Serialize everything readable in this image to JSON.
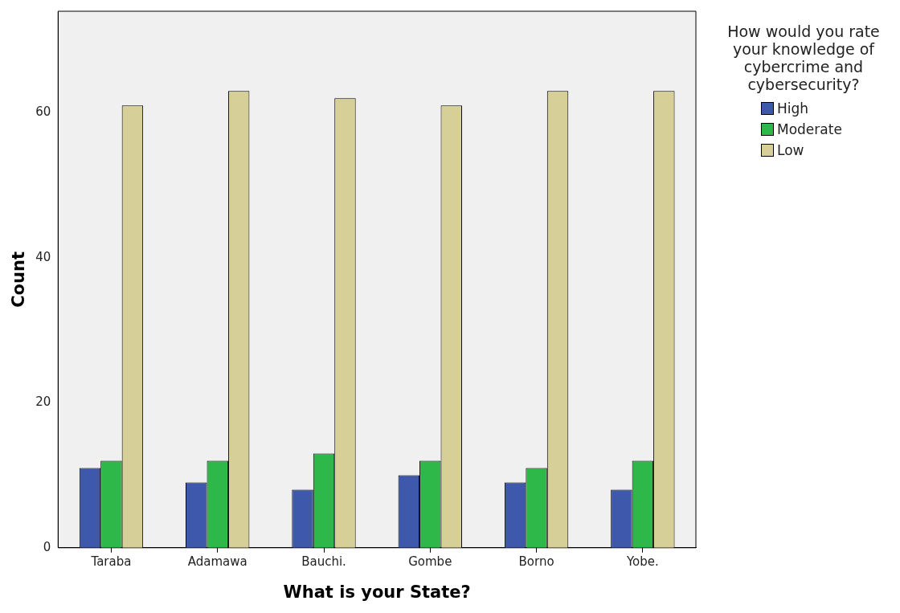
{
  "chart_data": {
    "type": "bar",
    "xlabel": "What is your State?",
    "ylabel": "Count",
    "legend_title": "How would you rate your knowledge of cybercrime and cybersecurity?",
    "categories": [
      "Taraba",
      "Adamawa",
      "Bauchi.",
      "Gombe",
      "Borno",
      "Yobe."
    ],
    "series": [
      {
        "name": "High",
        "color": "#3e58ac",
        "values": [
          11,
          9,
          8,
          10,
          9,
          8
        ]
      },
      {
        "name": "Moderate",
        "color": "#2fb84a",
        "values": [
          12,
          12,
          13,
          12,
          11,
          12
        ]
      },
      {
        "name": "Low",
        "color": "#d6cf97",
        "values": [
          61,
          63,
          62,
          61,
          63,
          63
        ]
      }
    ],
    "ylim": [
      0,
      74
    ],
    "yticks": [
      0,
      20,
      40,
      60
    ],
    "grid": false,
    "legend": "right"
  }
}
